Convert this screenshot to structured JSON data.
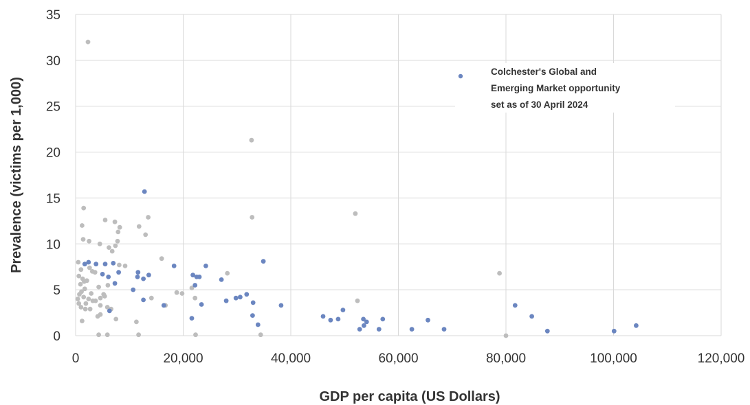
{
  "chart_data": {
    "type": "scatter",
    "title": "",
    "xlabel": "GDP per capita (US Dollars)",
    "ylabel": "Prevalence (victims per 1,000)",
    "xlim": [
      0,
      120000
    ],
    "ylim": [
      0,
      35
    ],
    "x_ticks": [
      0,
      20000,
      40000,
      60000,
      80000,
      100000,
      120000
    ],
    "x_tick_labels": [
      "0",
      "20,000",
      "40,000",
      "60,000",
      "80,000",
      "100,000",
      "120,000"
    ],
    "y_ticks": [
      0,
      5,
      10,
      15,
      20,
      25,
      30,
      35
    ],
    "y_tick_labels": [
      "0",
      "5",
      "10",
      "15",
      "20",
      "25",
      "30",
      "35"
    ],
    "grid": true,
    "legend_position": "top-right",
    "legend": {
      "lines": [
        "Colchester's Global and",
        "Emerging Market opportunity",
        "set as of 30 April 2024"
      ],
      "color": "#6b86c0"
    },
    "series": [
      {
        "name": "",
        "color": "#bdbdbd",
        "points": [
          [
            2300,
            32.0
          ],
          [
            1500,
            13.9
          ],
          [
            1200,
            12.0
          ],
          [
            1400,
            10.5
          ],
          [
            2500,
            10.3
          ],
          [
            4500,
            10.0
          ],
          [
            5500,
            12.6
          ],
          [
            7300,
            12.4
          ],
          [
            8200,
            11.8
          ],
          [
            7900,
            11.3
          ],
          [
            11800,
            11.9
          ],
          [
            13500,
            12.9
          ],
          [
            13000,
            11.0
          ],
          [
            6200,
            9.6
          ],
          [
            6800,
            9.2
          ],
          [
            7800,
            10.3
          ],
          [
            7400,
            9.8
          ],
          [
            16000,
            8.4
          ],
          [
            9200,
            7.6
          ],
          [
            8100,
            7.7
          ],
          [
            2600,
            7.4
          ],
          [
            3100,
            7.0
          ],
          [
            500,
            8.0
          ],
          [
            1000,
            7.2
          ],
          [
            600,
            6.5
          ],
          [
            1300,
            6.2
          ],
          [
            1600,
            5.9
          ],
          [
            900,
            5.6
          ],
          [
            2100,
            6.0
          ],
          [
            3600,
            6.9
          ],
          [
            4300,
            5.3
          ],
          [
            5200,
            4.5
          ],
          [
            6000,
            5.5
          ],
          [
            1700,
            5.1
          ],
          [
            1100,
            4.8
          ],
          [
            700,
            4.5
          ],
          [
            2900,
            4.6
          ],
          [
            400,
            4.0
          ],
          [
            1500,
            4.2
          ],
          [
            2400,
            4.0
          ],
          [
            3200,
            3.8
          ],
          [
            1900,
            3.5
          ],
          [
            600,
            3.5
          ],
          [
            1000,
            3.1
          ],
          [
            1800,
            2.9
          ],
          [
            2700,
            2.9
          ],
          [
            3700,
            3.8
          ],
          [
            4600,
            4.1
          ],
          [
            5400,
            4.3
          ],
          [
            4600,
            3.3
          ],
          [
            5900,
            3.1
          ],
          [
            6600,
            2.9
          ],
          [
            4100,
            2.1
          ],
          [
            4600,
            2.3
          ],
          [
            7500,
            1.8
          ],
          [
            1200,
            1.6
          ],
          [
            11300,
            1.5
          ],
          [
            4300,
            0.1
          ],
          [
            5900,
            0.1
          ],
          [
            11700,
            0.1
          ],
          [
            14100,
            4.1
          ],
          [
            16700,
            3.3
          ],
          [
            18800,
            4.7
          ],
          [
            19800,
            4.6
          ],
          [
            21600,
            5.2
          ],
          [
            22200,
            4.1
          ],
          [
            28200,
            6.8
          ],
          [
            32700,
            21.3
          ],
          [
            32800,
            12.9
          ],
          [
            52000,
            13.3
          ],
          [
            52400,
            3.8
          ],
          [
            78800,
            6.8
          ],
          [
            22300,
            0.1
          ],
          [
            34400,
            0.1
          ],
          [
            80000,
            0.0
          ]
        ]
      },
      {
        "name": "",
        "color": "#6b86c0",
        "points": [
          [
            12800,
            15.7
          ],
          [
            1700,
            7.8
          ],
          [
            2400,
            8.0
          ],
          [
            3800,
            7.8
          ],
          [
            5500,
            7.8
          ],
          [
            7000,
            7.9
          ],
          [
            5000,
            6.7
          ],
          [
            6100,
            6.4
          ],
          [
            7300,
            5.7
          ],
          [
            8000,
            6.9
          ],
          [
            11600,
            6.9
          ],
          [
            11500,
            6.4
          ],
          [
            13600,
            6.6
          ],
          [
            12600,
            6.2
          ],
          [
            10700,
            5.0
          ],
          [
            12600,
            3.9
          ],
          [
            6300,
            2.7
          ],
          [
            18300,
            7.6
          ],
          [
            16400,
            3.3
          ],
          [
            21800,
            6.6
          ],
          [
            22500,
            6.4
          ],
          [
            23000,
            6.4
          ],
          [
            24200,
            7.6
          ],
          [
            22200,
            5.5
          ],
          [
            23400,
            3.4
          ],
          [
            21600,
            1.9
          ],
          [
            27100,
            6.1
          ],
          [
            28000,
            3.8
          ],
          [
            29800,
            4.1
          ],
          [
            30600,
            4.2
          ],
          [
            31800,
            4.5
          ],
          [
            33000,
            3.6
          ],
          [
            34900,
            8.1
          ],
          [
            32900,
            2.2
          ],
          [
            33900,
            1.2
          ],
          [
            38200,
            3.3
          ],
          [
            46000,
            2.1
          ],
          [
            47400,
            1.7
          ],
          [
            48800,
            1.8
          ],
          [
            49700,
            2.8
          ],
          [
            52800,
            0.7
          ],
          [
            53500,
            1.8
          ],
          [
            53600,
            1.1
          ],
          [
            54100,
            1.5
          ],
          [
            56400,
            0.7
          ],
          [
            57100,
            1.8
          ],
          [
            62500,
            0.7
          ],
          [
            65500,
            1.7
          ],
          [
            68500,
            0.7
          ],
          [
            81700,
            3.3
          ],
          [
            84800,
            2.1
          ],
          [
            87700,
            0.5
          ],
          [
            100100,
            0.5
          ],
          [
            104200,
            1.1
          ]
        ]
      }
    ]
  }
}
